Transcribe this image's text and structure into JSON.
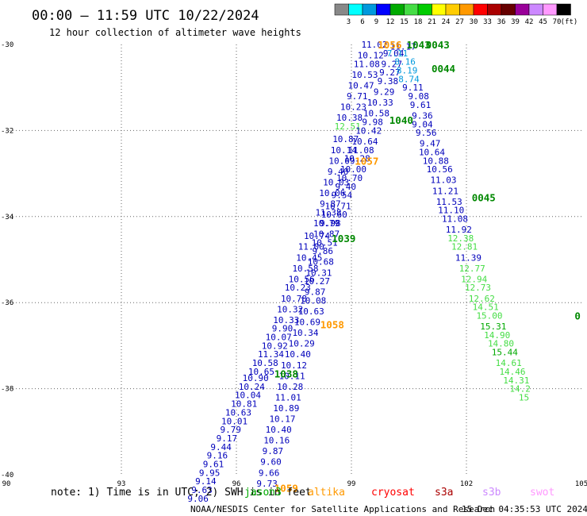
{
  "header": {
    "title": "00:00 – 11:59 UTC 10/22/2024",
    "subtitle": "12 hour collection of altimeter wave heights"
  },
  "colorbar": {
    "labels": [
      "3",
      "6",
      "9",
      "12",
      "15",
      "18",
      "21",
      "24",
      "27",
      "30",
      "33",
      "36",
      "39",
      "42",
      "45",
      "70",
      "(ft)"
    ],
    "colors": [
      "#888888",
      "#00ffff",
      "#0099dd",
      "#0000ff",
      "#00aa00",
      "#44dd44",
      "#00cc00",
      "#ffff00",
      "#ffcc00",
      "#ff9900",
      "#ff0000",
      "#aa0000",
      "#660000",
      "#990099",
      "#cc88ff",
      "#ff99ff",
      "#000000"
    ]
  },
  "chart_data": {
    "type": "scatter",
    "title": "00:00 – 11:59 UTC 10/22/2024",
    "subtitle": "12 hour collection of altimeter wave heights",
    "x_range": [
      90,
      105
    ],
    "y_range": [
      -40,
      -30
    ],
    "x_ticks": [
      "90",
      "93",
      "96",
      "99",
      "102",
      "105"
    ],
    "y_ticks": [
      "-30",
      "-32",
      "-34",
      "-36",
      "-38",
      "-40"
    ],
    "grid": true,
    "units": "ft",
    "points": [
      {
        "x": 99.6,
        "y": -30.0,
        "v": "11.02",
        "c": "#0000bb"
      },
      {
        "x": 99.5,
        "y": -30.25,
        "v": "10.12",
        "c": "#0000bb"
      },
      {
        "x": 99.4,
        "y": -30.45,
        "v": "11.08",
        "c": "#0000bb"
      },
      {
        "x": 99.35,
        "y": -30.7,
        "v": "10.53",
        "c": "#0000bb"
      },
      {
        "x": 99.25,
        "y": -30.95,
        "v": "10.47",
        "c": "#0000bb"
      },
      {
        "x": 99.15,
        "y": -31.2,
        "v": "9.71",
        "c": "#0000bb"
      },
      {
        "x": 99.05,
        "y": -31.45,
        "v": "10.23",
        "c": "#0000bb"
      },
      {
        "x": 98.95,
        "y": -31.7,
        "v": "10.38",
        "c": "#0000bb"
      },
      {
        "x": 98.9,
        "y": -31.9,
        "v": "12.51",
        "c": "#44dd44"
      },
      {
        "x": 98.85,
        "y": -32.2,
        "v": "10.87",
        "c": "#0000bb"
      },
      {
        "x": 98.8,
        "y": -32.45,
        "v": "10.14",
        "c": "#0000bb"
      },
      {
        "x": 98.75,
        "y": -32.7,
        "v": "10.09",
        "c": "#0000bb"
      },
      {
        "x": 98.65,
        "y": -32.95,
        "v": "9.40",
        "c": "#0000bb"
      },
      {
        "x": 98.6,
        "y": -33.2,
        "v": "10.03",
        "c": "#0000bb"
      },
      {
        "x": 98.5,
        "y": -33.45,
        "v": "10.06",
        "c": "#0000bb"
      },
      {
        "x": 98.45,
        "y": -33.7,
        "v": "9.87",
        "c": "#0000bb"
      },
      {
        "x": 98.4,
        "y": -33.9,
        "v": "11.38",
        "c": "#0000bb"
      },
      {
        "x": 98.35,
        "y": -34.15,
        "v": "10.79",
        "c": "#0000bb"
      },
      {
        "x": 98.1,
        "y": -34.45,
        "v": "10.74",
        "c": "#0000bb"
      },
      {
        "x": 97.95,
        "y": -34.7,
        "v": "11.00",
        "c": "#0000bb"
      },
      {
        "x": 97.9,
        "y": -34.95,
        "v": "10.45",
        "c": "#0000bb"
      },
      {
        "x": 97.8,
        "y": -35.2,
        "v": "10.58",
        "c": "#0000bb"
      },
      {
        "x": 97.7,
        "y": -35.45,
        "v": "10.56",
        "c": "#0000bb"
      },
      {
        "x": 97.6,
        "y": -35.65,
        "v": "10.23",
        "c": "#0000bb"
      },
      {
        "x": 97.5,
        "y": -35.9,
        "v": "10.78",
        "c": "#0000bb"
      },
      {
        "x": 97.4,
        "y": -36.15,
        "v": "10.32",
        "c": "#0000bb"
      },
      {
        "x": 97.3,
        "y": -36.4,
        "v": "10.33",
        "c": "#0000bb"
      },
      {
        "x": 97.2,
        "y": -36.6,
        "v": "9.90",
        "c": "#0000bb"
      },
      {
        "x": 97.1,
        "y": -36.8,
        "v": "10.07",
        "c": "#0000bb"
      },
      {
        "x": 97.0,
        "y": -37.0,
        "v": "10.92",
        "c": "#0000bb"
      },
      {
        "x": 96.9,
        "y": -37.2,
        "v": "11.34",
        "c": "#0000bb"
      },
      {
        "x": 96.75,
        "y": -37.4,
        "v": "10.58",
        "c": "#0000bb"
      },
      {
        "x": 96.65,
        "y": -37.6,
        "v": "10.65",
        "c": "#0000bb"
      },
      {
        "x": 96.5,
        "y": -37.75,
        "v": "10.90",
        "c": "#0000bb"
      },
      {
        "x": 96.4,
        "y": -37.95,
        "v": "10.24",
        "c": "#0000bb"
      },
      {
        "x": 96.3,
        "y": -38.15,
        "v": "10.04",
        "c": "#0000bb"
      },
      {
        "x": 96.2,
        "y": -38.35,
        "v": "10.81",
        "c": "#0000bb"
      },
      {
        "x": 96.05,
        "y": -38.55,
        "v": "10.63",
        "c": "#0000bb"
      },
      {
        "x": 95.95,
        "y": -38.75,
        "v": "10.01",
        "c": "#0000bb"
      },
      {
        "x": 95.85,
        "y": -38.95,
        "v": "9.79",
        "c": "#0000bb"
      },
      {
        "x": 95.75,
        "y": -39.15,
        "v": "9.17",
        "c": "#0000bb"
      },
      {
        "x": 95.6,
        "y": -39.35,
        "v": "9.44",
        "c": "#0000bb"
      },
      {
        "x": 95.5,
        "y": -39.55,
        "v": "9.16",
        "c": "#0000bb"
      },
      {
        "x": 95.4,
        "y": -39.75,
        "v": "9.61",
        "c": "#0000bb"
      },
      {
        "x": 95.3,
        "y": -39.95,
        "v": "9.95",
        "c": "#0000bb"
      },
      {
        "x": 95.2,
        "y": -40.15,
        "v": "9.14",
        "c": "#0000bb"
      },
      {
        "x": 95.1,
        "y": -40.35,
        "v": "9.63",
        "c": "#0000bb"
      },
      {
        "x": 95.0,
        "y": -40.55,
        "v": "9.06",
        "c": "#0000bb"
      },
      {
        "x": 100.1,
        "y": -30.2,
        "v": "9.04",
        "c": "#0000bb"
      },
      {
        "x": 100.05,
        "y": -30.45,
        "v": "9.27",
        "c": "#0000bb"
      },
      {
        "x": 100.0,
        "y": -30.65,
        "v": "9.27",
        "c": "#0000bb"
      },
      {
        "x": 99.95,
        "y": -30.85,
        "v": "9.38",
        "c": "#0000bb"
      },
      {
        "x": 99.85,
        "y": -31.1,
        "v": "9.29",
        "c": "#0000bb"
      },
      {
        "x": 99.75,
        "y": -31.35,
        "v": "10.33",
        "c": "#0000bb"
      },
      {
        "x": 99.65,
        "y": -31.6,
        "v": "10.58",
        "c": "#0000bb"
      },
      {
        "x": 99.55,
        "y": -31.8,
        "v": "9.98",
        "c": "#0000bb"
      },
      {
        "x": 99.45,
        "y": -32.0,
        "v": "10.42",
        "c": "#0000bb"
      },
      {
        "x": 99.35,
        "y": -32.25,
        "v": "10.64",
        "c": "#0000bb"
      },
      {
        "x": 99.25,
        "y": -32.45,
        "v": "11.08",
        "c": "#0000bb"
      },
      {
        "x": 99.15,
        "y": -32.65,
        "v": "10.28",
        "c": "#0000bb"
      },
      {
        "x": 99.05,
        "y": -32.9,
        "v": "10.00",
        "c": "#0000bb"
      },
      {
        "x": 98.95,
        "y": -33.1,
        "v": "10.70",
        "c": "#0000bb"
      },
      {
        "x": 98.85,
        "y": -33.3,
        "v": "9.40",
        "c": "#0000bb"
      },
      {
        "x": 98.75,
        "y": -33.5,
        "v": "9.54",
        "c": "#0000bb"
      },
      {
        "x": 98.65,
        "y": -33.75,
        "v": "10.71",
        "c": "#0000bb"
      },
      {
        "x": 98.55,
        "y": -33.95,
        "v": "10.60",
        "c": "#0000bb"
      },
      {
        "x": 98.45,
        "y": -34.15,
        "v": "9.98",
        "c": "#0000bb"
      },
      {
        "x": 98.35,
        "y": -34.4,
        "v": "10.87",
        "c": "#0000bb"
      },
      {
        "x": 98.3,
        "y": -34.6,
        "v": "10.51",
        "c": "#0000bb"
      },
      {
        "x": 98.25,
        "y": -34.8,
        "v": "9.86",
        "c": "#0000bb"
      },
      {
        "x": 98.2,
        "y": -35.05,
        "v": "10.68",
        "c": "#0000bb"
      },
      {
        "x": 98.15,
        "y": -35.3,
        "v": "10.31",
        "c": "#0000bb"
      },
      {
        "x": 98.1,
        "y": -35.5,
        "v": "10.27",
        "c": "#0000bb"
      },
      {
        "x": 98.05,
        "y": -35.75,
        "v": "9.87",
        "c": "#0000bb"
      },
      {
        "x": 98.0,
        "y": -35.95,
        "v": "10.08",
        "c": "#0000bb"
      },
      {
        "x": 97.95,
        "y": -36.2,
        "v": "10.63",
        "c": "#0000bb"
      },
      {
        "x": 97.85,
        "y": -36.45,
        "v": "10.69",
        "c": "#0000bb"
      },
      {
        "x": 97.8,
        "y": -36.7,
        "v": "10.34",
        "c": "#0000bb"
      },
      {
        "x": 97.7,
        "y": -36.95,
        "v": "10.29",
        "c": "#0000bb"
      },
      {
        "x": 97.6,
        "y": -37.2,
        "v": "10.40",
        "c": "#0000bb"
      },
      {
        "x": 97.5,
        "y": -37.45,
        "v": "10.12",
        "c": "#0000bb"
      },
      {
        "x": 97.45,
        "y": -37.7,
        "v": "10.11",
        "c": "#0000bb"
      },
      {
        "x": 97.4,
        "y": -37.95,
        "v": "10.28",
        "c": "#0000bb"
      },
      {
        "x": 97.35,
        "y": -38.2,
        "v": "11.01",
        "c": "#0000bb"
      },
      {
        "x": 97.3,
        "y": -38.45,
        "v": "10.89",
        "c": "#0000bb"
      },
      {
        "x": 97.2,
        "y": -38.7,
        "v": "10.17",
        "c": "#0000bb"
      },
      {
        "x": 97.1,
        "y": -38.95,
        "v": "10.40",
        "c": "#0000bb"
      },
      {
        "x": 97.05,
        "y": -39.2,
        "v": "10.16",
        "c": "#0000bb"
      },
      {
        "x": 96.95,
        "y": -39.45,
        "v": "9.87",
        "c": "#0000bb"
      },
      {
        "x": 96.9,
        "y": -39.7,
        "v": "9.60",
        "c": "#0000bb"
      },
      {
        "x": 96.85,
        "y": -39.95,
        "v": "9.66",
        "c": "#0000bb"
      },
      {
        "x": 96.8,
        "y": -40.2,
        "v": "9.73",
        "c": "#0000bb"
      },
      {
        "x": 100.35,
        "y": -30.05,
        "v": "11.17",
        "c": "#0000bb"
      },
      {
        "x": 100.2,
        "y": -30.2,
        "v": "7.11",
        "c": "#0099dd"
      },
      {
        "x": 100.4,
        "y": -30.4,
        "v": "8.16",
        "c": "#0099dd"
      },
      {
        "x": 100.45,
        "y": -30.6,
        "v": "8.19",
        "c": "#0099dd"
      },
      {
        "x": 100.5,
        "y": -30.8,
        "v": "8.74",
        "c": "#0099dd"
      },
      {
        "x": 100.6,
        "y": -31.0,
        "v": "9.11",
        "c": "#0000bb"
      },
      {
        "x": 100.75,
        "y": -31.2,
        "v": "9.08",
        "c": "#0000bb"
      },
      {
        "x": 100.8,
        "y": -31.4,
        "v": "9.61",
        "c": "#0000bb"
      },
      {
        "x": 100.85,
        "y": -31.65,
        "v": "9.36",
        "c": "#0000bb"
      },
      {
        "x": 100.85,
        "y": -31.85,
        "v": "9.04",
        "c": "#0000bb"
      },
      {
        "x": 100.95,
        "y": -32.05,
        "v": "9.56",
        "c": "#0000bb"
      },
      {
        "x": 101.05,
        "y": -32.3,
        "v": "9.47",
        "c": "#0000bb"
      },
      {
        "x": 101.1,
        "y": -32.5,
        "v": "10.64",
        "c": "#0000bb"
      },
      {
        "x": 101.2,
        "y": -32.7,
        "v": "10.88",
        "c": "#0000bb"
      },
      {
        "x": 101.3,
        "y": -32.9,
        "v": "10.56",
        "c": "#0000bb"
      },
      {
        "x": 101.4,
        "y": -33.15,
        "v": "11.03",
        "c": "#0000bb"
      },
      {
        "x": 101.45,
        "y": -33.4,
        "v": "11.21",
        "c": "#0000bb"
      },
      {
        "x": 101.55,
        "y": -33.65,
        "v": "11.53",
        "c": "#0000bb"
      },
      {
        "x": 101.6,
        "y": -33.85,
        "v": "11.10",
        "c": "#0000bb"
      },
      {
        "x": 101.7,
        "y": -34.05,
        "v": "11.08",
        "c": "#0000bb"
      },
      {
        "x": 101.8,
        "y": -34.3,
        "v": "11.92",
        "c": "#0000bb"
      },
      {
        "x": 101.85,
        "y": -34.5,
        "v": "12.38",
        "c": "#44dd44"
      },
      {
        "x": 101.95,
        "y": -34.7,
        "v": "12.81",
        "c": "#44dd44"
      },
      {
        "x": 102.05,
        "y": -34.95,
        "v": "11.39",
        "c": "#0000bb"
      },
      {
        "x": 102.15,
        "y": -35.2,
        "v": "12.77",
        "c": "#44dd44"
      },
      {
        "x": 102.2,
        "y": -35.45,
        "v": "12.94",
        "c": "#44dd44"
      },
      {
        "x": 102.3,
        "y": -35.65,
        "v": "12.73",
        "c": "#44dd44"
      },
      {
        "x": 102.4,
        "y": -35.9,
        "v": "12.62",
        "c": "#44dd44"
      },
      {
        "x": 102.5,
        "y": -36.1,
        "v": "14.51",
        "c": "#44dd44"
      },
      {
        "x": 102.6,
        "y": -36.3,
        "v": "15.00",
        "c": "#44dd44"
      },
      {
        "x": 102.7,
        "y": -36.55,
        "v": "15.31",
        "c": "#00aa00"
      },
      {
        "x": 102.8,
        "y": -36.75,
        "v": "14.90",
        "c": "#44dd44"
      },
      {
        "x": 102.9,
        "y": -36.95,
        "v": "14.80",
        "c": "#44dd44"
      },
      {
        "x": 103.0,
        "y": -37.15,
        "v": "15.44",
        "c": "#00aa00"
      },
      {
        "x": 103.1,
        "y": -37.4,
        "v": "14.61",
        "c": "#44dd44"
      },
      {
        "x": 103.2,
        "y": -37.6,
        "v": "14.46",
        "c": "#44dd44"
      },
      {
        "x": 103.3,
        "y": -37.8,
        "v": "14.31",
        "c": "#44dd44"
      },
      {
        "x": 103.4,
        "y": -38.0,
        "v": "14.2",
        "c": "#44dd44"
      },
      {
        "x": 103.5,
        "y": -38.2,
        "v": "15",
        "c": "#44dd44"
      }
    ],
    "pass_labels": [
      {
        "x": 100.0,
        "y": -30.0,
        "t": "1056",
        "c": "#ff9900"
      },
      {
        "x": 100.75,
        "y": -30.0,
        "t": "1043",
        "c": "#008800"
      },
      {
        "x": 101.25,
        "y": -30.0,
        "t": "0043",
        "c": "#008800"
      },
      {
        "x": 101.4,
        "y": -30.55,
        "t": "0044",
        "c": "#008800"
      },
      {
        "x": 100.3,
        "y": -31.75,
        "t": "1040",
        "c": "#008800"
      },
      {
        "x": 99.4,
        "y": -32.7,
        "t": "1057",
        "c": "#ff9900"
      },
      {
        "x": 102.45,
        "y": -33.55,
        "t": "0045",
        "c": "#008800"
      },
      {
        "x": 98.8,
        "y": -34.5,
        "t": "1039",
        "c": "#008800"
      },
      {
        "x": 98.5,
        "y": -36.5,
        "t": "1058",
        "c": "#ff9900"
      },
      {
        "x": 97.3,
        "y": -37.65,
        "t": "1038",
        "c": "#008800"
      },
      {
        "x": 97.3,
        "y": -40.3,
        "t": "1059",
        "c": "#ff9900"
      },
      {
        "x": 104.9,
        "y": -36.3,
        "t": "0",
        "c": "#008800"
      }
    ]
  },
  "footer": {
    "note": "note: 1) Time is in UTC; 2) SWH is in feet",
    "satellites": [
      {
        "name": "jason3",
        "color": "#00aa00"
      },
      {
        "name": "altika",
        "color": "#ff9900"
      },
      {
        "name": "cryosat",
        "color": "#ff0000"
      },
      {
        "name": "s3a",
        "color": "#aa0000"
      },
      {
        "name": "s3b",
        "color": "#cc88ff"
      },
      {
        "name": "swot",
        "color": "#ff99ff"
      }
    ],
    "credit": "NOAA/NESDIS Center for Satellite Applications and Research",
    "timestamp": "15 Dec 04:35:53 UTC 2024"
  }
}
